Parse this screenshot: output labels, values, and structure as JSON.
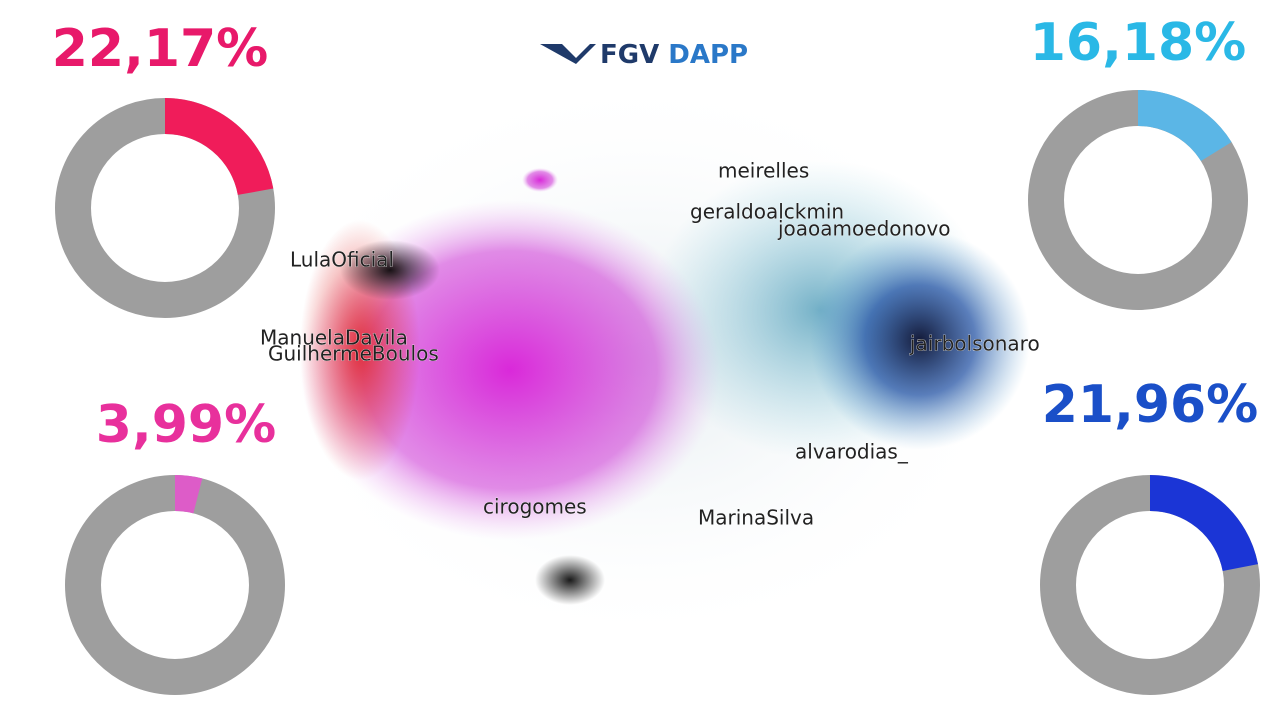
{
  "logo": "FGV DAPP",
  "chart_data": [
    {
      "type": "donut",
      "values": [
        22.17
      ],
      "value_labels": [
        "22,17%"
      ],
      "color": "#f01c5a",
      "label_color": "#e8196a",
      "rest_color": "#9e9e9e"
    },
    {
      "type": "donut",
      "values": [
        16.18
      ],
      "value_labels": [
        "16,18%"
      ],
      "color": "#5bb6e6",
      "label_color": "#2ab8e6",
      "rest_color": "#9e9e9e"
    },
    {
      "type": "donut",
      "values": [
        3.99
      ],
      "value_labels": [
        "3,99%"
      ],
      "color": "#dd5cc8",
      "label_color": "#e8309c",
      "rest_color": "#9e9e9e"
    },
    {
      "type": "donut",
      "values": [
        21.96
      ],
      "value_labels": [
        "21,96%"
      ],
      "color": "#1b35d6",
      "label_color": "#1a4fc8",
      "rest_color": "#9e9e9e"
    }
  ],
  "network_labels": [
    "meirelles",
    "geraldoalckmin",
    "joaoamoedonovo",
    "LulaOficial",
    "ManuelaDavila",
    "GuilhermeBoulos",
    "jairbolsonaro",
    "alvarodias_",
    "cirogomes",
    "MarinaSilva"
  ]
}
